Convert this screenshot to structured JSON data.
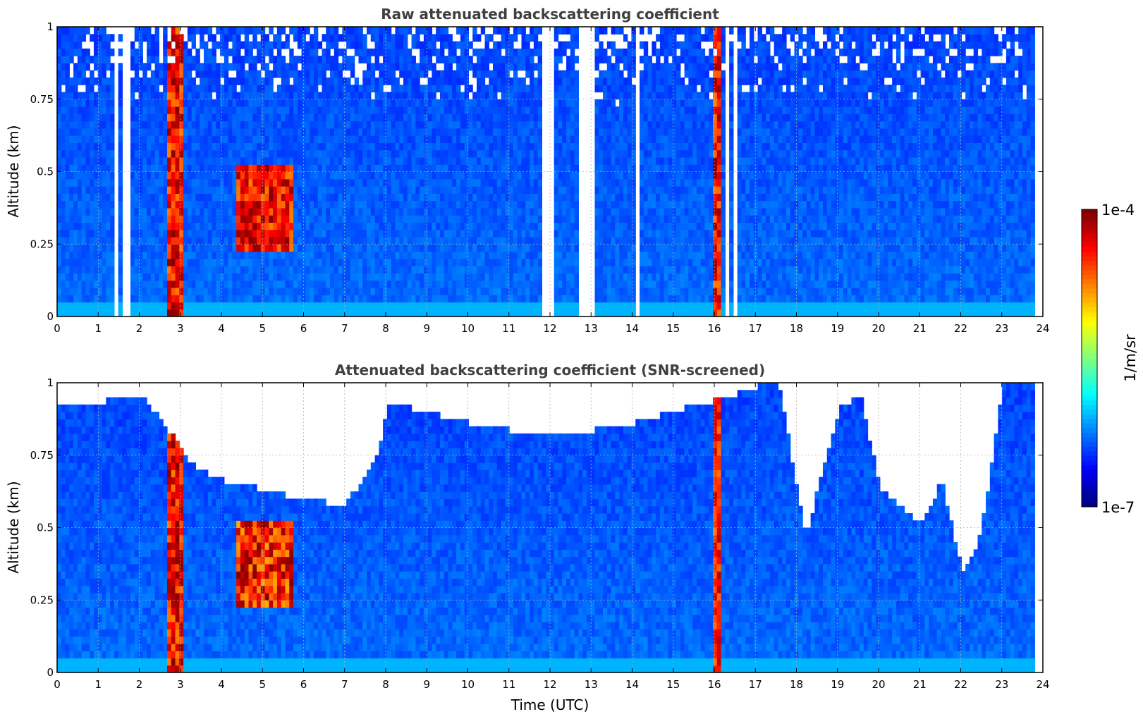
{
  "chart_data": [
    {
      "type": "heatmap",
      "title": "Raw attenuated backscattering coefficient",
      "xlabel": "",
      "ylabel": "Altitude (km)",
      "xlim": [
        0,
        24
      ],
      "ylim": [
        0,
        1
      ],
      "x_ticks": [
        "0",
        "1",
        "2",
        "3",
        "4",
        "5",
        "6",
        "7",
        "8",
        "9",
        "10",
        "11",
        "12",
        "13",
        "14",
        "15",
        "16",
        "17",
        "18",
        "19",
        "20",
        "21",
        "22",
        "23",
        "24"
      ],
      "y_ticks": [
        "0",
        "0.25",
        "0.5",
        "0.75",
        "1"
      ],
      "grid": true,
      "data_extent_hours": [
        0.0,
        23.8
      ],
      "features": [
        {
          "kind": "cloud",
          "x_range": [
            2.65,
            3.05
          ],
          "y_range": [
            0.0,
            1.0
          ],
          "value_level": "high"
        },
        {
          "kind": "cloud",
          "x_range": [
            4.3,
            5.7
          ],
          "y_range": [
            0.22,
            0.52
          ],
          "value_level": "high"
        },
        {
          "kind": "cloud",
          "x_range": [
            15.95,
            16.15
          ],
          "y_range": [
            0.0,
            1.0
          ],
          "value_level": "high"
        }
      ],
      "gaps_hours": [
        1.4,
        1.55,
        1.7,
        11.85,
        11.95,
        12.75,
        12.95,
        14.05,
        16.3,
        16.5
      ]
    },
    {
      "type": "heatmap",
      "title": "Attenuated backscattering coefficient (SNR-screened)",
      "xlabel": "Time (UTC)",
      "ylabel": "Altitude (km)",
      "xlim": [
        0,
        24
      ],
      "ylim": [
        0,
        1
      ],
      "x_ticks": [
        "0",
        "1",
        "2",
        "3",
        "4",
        "5",
        "6",
        "7",
        "8",
        "9",
        "10",
        "11",
        "12",
        "13",
        "14",
        "15",
        "16",
        "17",
        "18",
        "19",
        "20",
        "21",
        "22",
        "23",
        "24"
      ],
      "y_ticks": [
        "0",
        "0.25",
        "0.5",
        "0.75",
        "1"
      ],
      "grid": true,
      "data_extent_hours": [
        0.0,
        23.8
      ],
      "screened_top_km": [
        [
          0.0,
          0.9
        ],
        [
          1.0,
          0.92
        ],
        [
          2.0,
          0.95
        ],
        [
          3.3,
          0.7
        ],
        [
          4.0,
          0.65
        ],
        [
          5.0,
          0.62
        ],
        [
          6.0,
          0.58
        ],
        [
          7.0,
          0.57
        ],
        [
          7.8,
          0.75
        ],
        [
          8.0,
          0.92
        ],
        [
          10.0,
          0.85
        ],
        [
          12.0,
          0.8
        ],
        [
          14.0,
          0.85
        ],
        [
          16.5,
          0.95
        ],
        [
          17.5,
          1.0
        ],
        [
          18.2,
          0.45
        ],
        [
          18.6,
          0.7
        ],
        [
          19.0,
          0.9
        ],
        [
          19.5,
          0.95
        ],
        [
          20.0,
          0.62
        ],
        [
          20.5,
          0.56
        ],
        [
          21.0,
          0.5
        ],
        [
          21.5,
          0.65
        ],
        [
          22.0,
          0.33
        ],
        [
          22.3,
          0.4
        ],
        [
          22.6,
          0.6
        ],
        [
          23.0,
          1.0
        ],
        [
          23.8,
          1.0
        ]
      ]
    }
  ],
  "colorbar": {
    "label": "1/m/sr",
    "max_label": "1e-4",
    "min_label": "1e-7",
    "scale": "log",
    "range": [
      1e-07,
      0.0001
    ],
    "colormap": "jet"
  }
}
